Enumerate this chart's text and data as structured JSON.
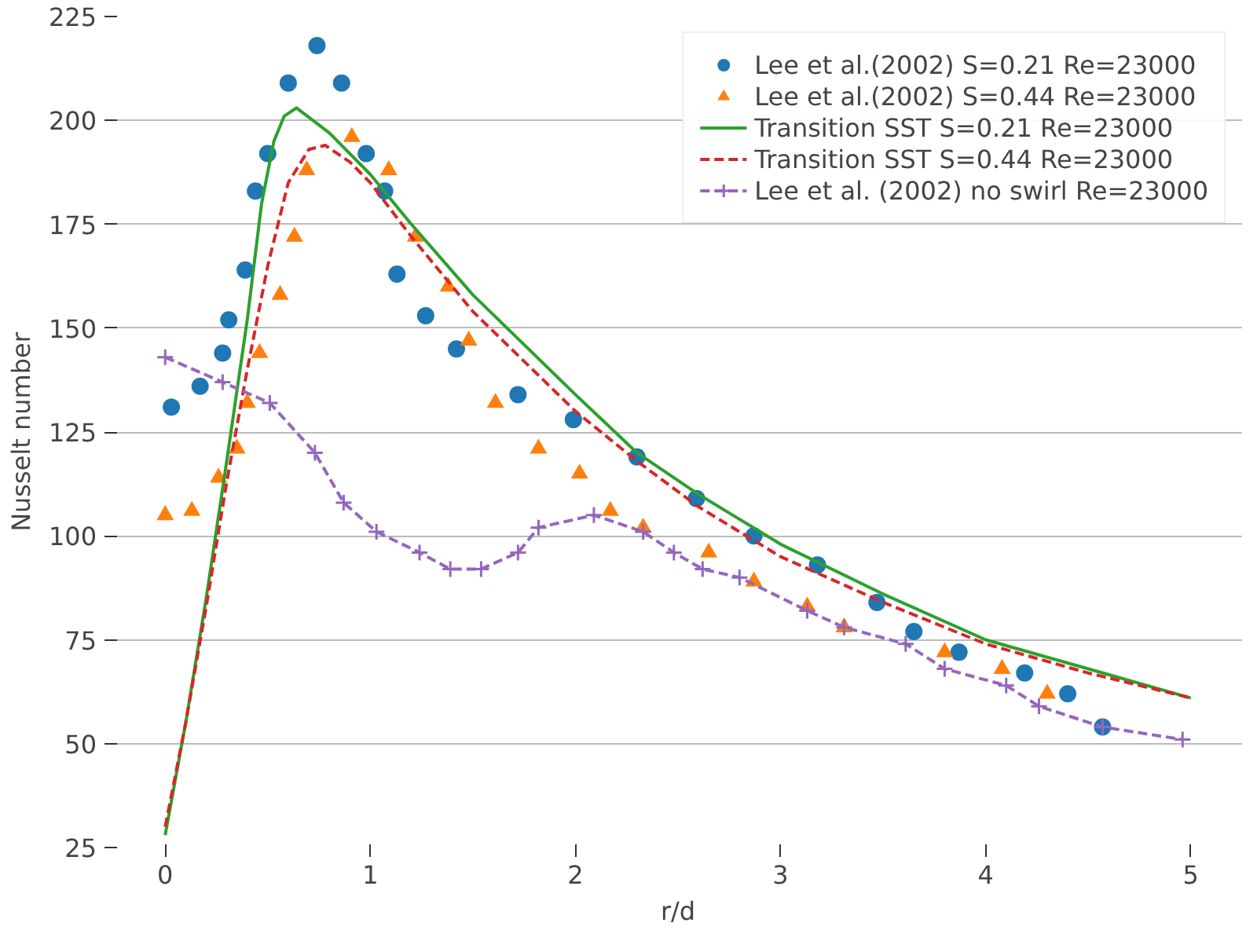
{
  "chart_data": {
    "type": "line",
    "xlabel": "r/d",
    "ylabel": "Nusselt number",
    "xlim": [
      -0.25,
      5.25
    ],
    "ylim": [
      25,
      225
    ],
    "xticks": [
      0,
      1,
      2,
      3,
      4,
      5
    ],
    "yticks": [
      25,
      50,
      75,
      100,
      125,
      150,
      175,
      200,
      225
    ],
    "grid": "y",
    "legend": "top right",
    "series": [
      {
        "name": "Lee et al.(2002) S=0.21 Re=23000",
        "type": "scatter",
        "marker": "circle",
        "color": "#1f77b4",
        "x": [
          0.03,
          0.17,
          0.28,
          0.31,
          0.39,
          0.44,
          0.5,
          0.6,
          0.74,
          0.86,
          0.98,
          1.07,
          1.13,
          1.27,
          1.42,
          1.72,
          1.99,
          2.3,
          2.59,
          2.87,
          3.18,
          3.47,
          3.65,
          3.87,
          4.19,
          4.4,
          4.57
        ],
        "values": [
          131,
          136,
          144,
          152,
          164,
          183,
          192,
          209,
          218,
          209,
          192,
          183,
          163,
          153,
          145,
          134,
          128,
          119,
          109,
          100,
          93,
          84,
          77,
          72,
          67,
          62,
          54
        ]
      },
      {
        "name": "Lee et al.(2002) S=0.44 Re=23000",
        "type": "scatter",
        "marker": "triangle",
        "color": "#ff7f0e",
        "x": [
          0.0,
          0.13,
          0.26,
          0.35,
          0.4,
          0.46,
          0.56,
          0.63,
          0.69,
          0.91,
          1.09,
          1.22,
          1.38,
          1.48,
          1.61,
          1.82,
          2.02,
          2.17,
          2.33,
          2.65,
          2.87,
          3.13,
          3.31,
          3.8,
          4.08,
          4.3
        ],
        "values": [
          105,
          106,
          114,
          121,
          132,
          144,
          158,
          172,
          188,
          196,
          188,
          172,
          160,
          147,
          132,
          121,
          115,
          106,
          102,
          96,
          89,
          83,
          78,
          72,
          68,
          62
        ]
      },
      {
        "name": "Transition SST S=0.21 Re=23000",
        "marker": "none",
        "line_style": "solid",
        "color": "#2ca02c",
        "x": [
          0,
          0.1,
          0.2,
          0.3,
          0.4,
          0.47,
          0.53,
          0.58,
          0.64,
          0.8,
          1.0,
          1.2,
          1.5,
          2.0,
          2.3,
          2.6,
          3.0,
          3.5,
          4.0,
          4.5,
          5.0
        ],
        "values": [
          28,
          55,
          85,
          118,
          152,
          180,
          195,
          201,
          203,
          197,
          187,
          175,
          158,
          134,
          120,
          110,
          98,
          86,
          75,
          68,
          61
        ]
      },
      {
        "name": "Transition SST S=0.44 Re=23000",
        "marker": "none",
        "line_style": "dashed",
        "color": "#d62728",
        "x": [
          0,
          0.1,
          0.2,
          0.3,
          0.4,
          0.5,
          0.6,
          0.7,
          0.78,
          0.9,
          1.0,
          1.2,
          1.5,
          2.0,
          2.3,
          2.6,
          3.0,
          3.5,
          4.0,
          4.5,
          5.0
        ],
        "values": [
          30,
          55,
          83,
          113,
          140,
          165,
          185,
          193,
          194,
          190,
          185,
          172,
          154,
          130,
          118,
          107,
          95,
          84,
          74,
          67,
          61
        ]
      },
      {
        "name": "Lee et al. (2002) no swirl Re=23000",
        "marker": "cross",
        "line_style": "dashed",
        "color": "#9467bd",
        "x": [
          0,
          0.28,
          0.51,
          0.73,
          0.87,
          1.03,
          1.24,
          1.39,
          1.54,
          1.72,
          1.82,
          2.09,
          2.33,
          2.48,
          2.62,
          2.8,
          3.13,
          3.31,
          3.61,
          3.8,
          4.1,
          4.26,
          4.57,
          4.96
        ],
        "values": [
          143,
          137,
          132,
          120,
          108,
          101,
          96,
          92,
          92,
          96,
          102,
          105,
          101,
          96,
          92,
          90,
          82,
          78,
          74,
          68,
          64,
          59,
          54,
          51
        ]
      }
    ]
  }
}
